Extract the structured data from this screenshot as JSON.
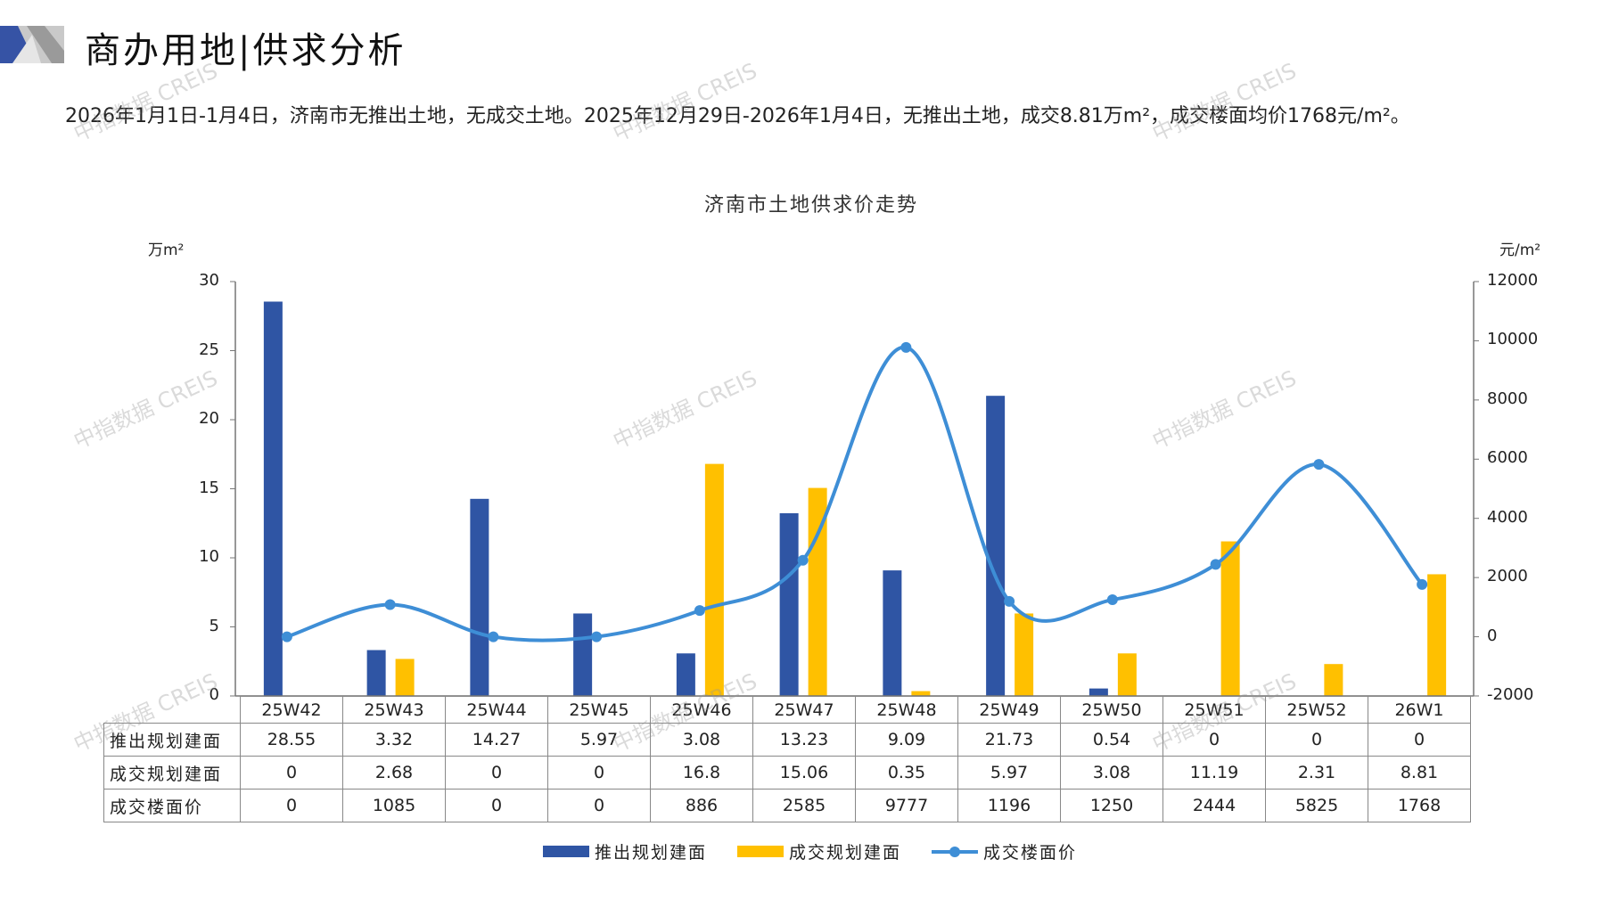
{
  "header": {
    "title": "商办用地|供求分析"
  },
  "summary": "2026年1月1日-1月4日，济南市无推出土地，无成交土地。2025年12月29日-2026年1月4日，无推出土地，成交8.81万m²，成交楼面均价1768元/m²。",
  "watermark": "中指数据 CREIS",
  "colors": {
    "supply": "#2F55A4",
    "deal": "#FFC000",
    "price": "#3E8ED6",
    "accent": "#3653A5"
  },
  "chart_data": {
    "type": "bar+line",
    "title": "济南市土地供求价走势",
    "left_unit": "万m²",
    "right_unit": "元/m²",
    "left_ylim": [
      0,
      30
    ],
    "left_ticks": [
      "0",
      "5",
      "10",
      "15",
      "20",
      "25",
      "30"
    ],
    "right_ylim": [
      -2000,
      12000
    ],
    "right_ticks": [
      "-2000",
      "0",
      "2000",
      "4000",
      "6000",
      "8000",
      "10000",
      "12000"
    ],
    "categories": [
      "25W42",
      "25W43",
      "25W44",
      "25W45",
      "25W46",
      "25W47",
      "25W48",
      "25W49",
      "25W50",
      "25W51",
      "25W52",
      "26W1"
    ],
    "series": [
      {
        "name": "推出规划建面",
        "type": "bar",
        "axis": "left",
        "values": [
          28.55,
          3.32,
          14.27,
          5.97,
          3.08,
          13.23,
          9.09,
          21.73,
          0.54,
          0,
          0,
          0
        ],
        "labels": [
          "28.55",
          "3.32",
          "14.27",
          "5.97",
          "3.08",
          "13.23",
          "9.09",
          "21.73",
          "0.54",
          "0",
          "0",
          "0"
        ]
      },
      {
        "name": "成交规划建面",
        "type": "bar",
        "axis": "left",
        "values": [
          0,
          2.68,
          0,
          0,
          16.8,
          15.06,
          0.35,
          5.97,
          3.08,
          11.19,
          2.31,
          8.81
        ],
        "labels": [
          "0",
          "2.68",
          "0",
          "0",
          "16.8",
          "15.06",
          "0.35",
          "5.97",
          "3.08",
          "11.19",
          "2.31",
          "8.81"
        ]
      },
      {
        "name": "成交楼面价",
        "type": "line",
        "axis": "right",
        "values": [
          0,
          1085,
          0,
          0,
          886,
          2585,
          9777,
          1196,
          1250,
          2444,
          5825,
          1768
        ],
        "labels": [
          "0",
          "1085",
          "0",
          "0",
          "886",
          "2585",
          "9777",
          "1196",
          "1250",
          "2444",
          "5825",
          "1768"
        ]
      }
    ],
    "legend": "bottom"
  }
}
